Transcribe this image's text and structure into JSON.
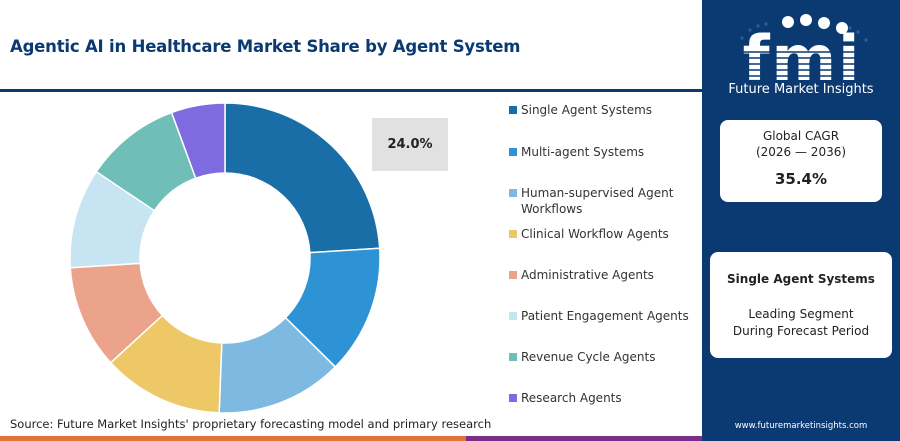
{
  "header": {
    "title": "Agentic AI in Healthcare Market Share by Agent System"
  },
  "chart_data": {
    "type": "pie",
    "title": "Agentic AI in Healthcare Market Share by Agent System",
    "categories": [
      "Single Agent Systems",
      "Multi-agent Systems",
      "Human-supervised Agent Workflows",
      "Clinical Workflow Agents",
      "Administrative Agents",
      "Patient Engagement Agents",
      "Revenue Cycle Agents",
      "Research Agents"
    ],
    "values": [
      24.0,
      13.4,
      13.2,
      12.6,
      10.8,
      10.4,
      10.0,
      5.6
    ],
    "colors": [
      "#1a6ea8",
      "#2d93d4",
      "#7db9e0",
      "#eec866",
      "#eba38c",
      "#c7e4f3",
      "#6fbfb8",
      "#7e6be0"
    ],
    "donut": true,
    "highlight_label": "24.0%",
    "legend_position": "right"
  },
  "source": "Source: Future Market Insights' proprietary forecasting model and primary research",
  "sidebar": {
    "logo_text": "fmi",
    "brand": "Future Market Insights",
    "cagr_label": "Global CAGR",
    "cagr_period": "(2026 — 2036)",
    "cagr_value": "35.4%",
    "segment_name": "Single Agent Systems",
    "segment_line1": "Leading Segment",
    "segment_line2": "During Forecast Period",
    "website": "www.futuremarketinsights.com"
  },
  "footer_bar_colors": [
    "#0b3a73",
    "#e2713a",
    "#7a2e8a"
  ]
}
